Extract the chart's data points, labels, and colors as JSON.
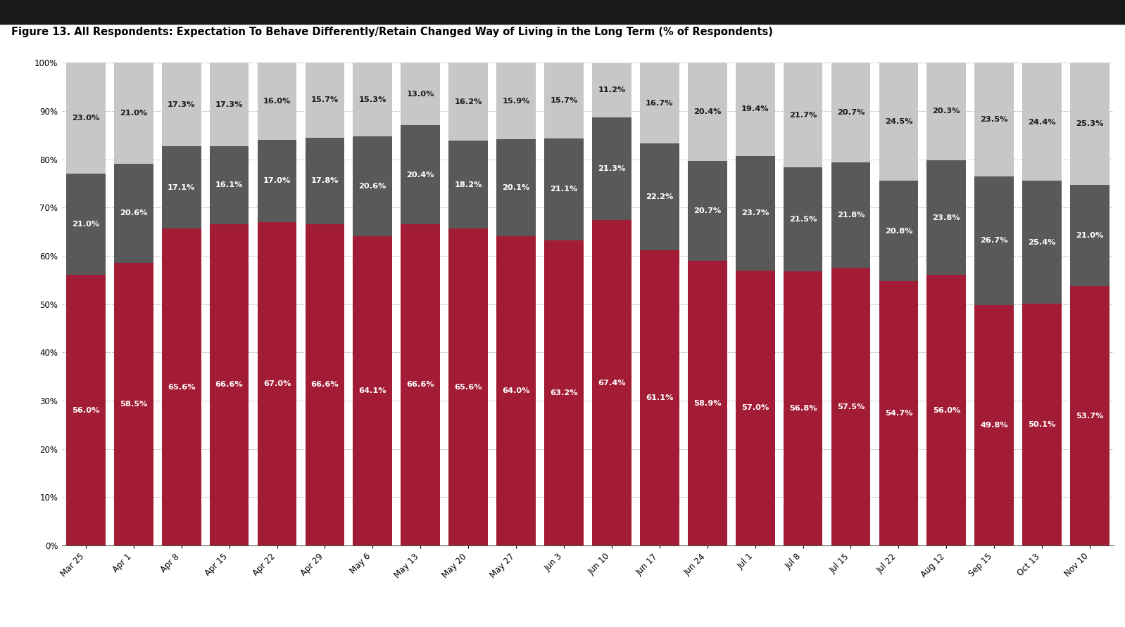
{
  "title": "Figure 13. All Respondents: Expectation To Behave Differently/Retain Changed Way of Living in the Long Term (% of Respondents)",
  "categories": [
    "Mar 25",
    "Apr 1",
    "Apr 8",
    "Apr 15",
    "Apr 22",
    "Apr 29",
    "May 6",
    "May 13",
    "May 20",
    "May 27",
    "Jun 3",
    "Jun 10",
    "Jun 17",
    "Jun 24",
    "Jul 1",
    "Jul 8",
    "Jul 15",
    "Jul 22",
    "Aug 12",
    "Sep 15",
    "Oct 13",
    "Nov 10"
  ],
  "yes": [
    56.0,
    58.5,
    65.6,
    66.6,
    67.0,
    66.6,
    64.1,
    66.6,
    65.6,
    64.0,
    63.2,
    67.4,
    61.1,
    58.9,
    57.0,
    56.8,
    57.5,
    54.7,
    56.0,
    49.8,
    50.1,
    53.7
  ],
  "no": [
    21.0,
    20.6,
    17.1,
    16.1,
    17.0,
    17.8,
    20.6,
    20.4,
    18.2,
    20.1,
    21.1,
    21.3,
    22.2,
    20.7,
    23.7,
    21.5,
    21.8,
    20.8,
    23.8,
    26.7,
    25.4,
    21.0
  ],
  "dontknow": [
    23.0,
    21.0,
    17.3,
    17.3,
    16.0,
    15.7,
    15.3,
    13.0,
    16.2,
    15.9,
    15.7,
    11.2,
    16.7,
    20.4,
    19.4,
    21.7,
    20.7,
    24.5,
    20.3,
    23.5,
    24.4,
    25.3
  ],
  "yes_color": "#a31c35",
  "no_color": "#595959",
  "dontknow_color": "#c7c7c7",
  "background_color": "#ffffff",
  "header_color": "#1a1a1a",
  "title_fontsize": 10.5,
  "label_fontsize": 8.2,
  "tick_fontsize": 8.5,
  "legend_fontsize": 9,
  "ylim": [
    0,
    100
  ],
  "yticks": [
    0,
    10,
    20,
    30,
    40,
    50,
    60,
    70,
    80,
    90,
    100
  ]
}
